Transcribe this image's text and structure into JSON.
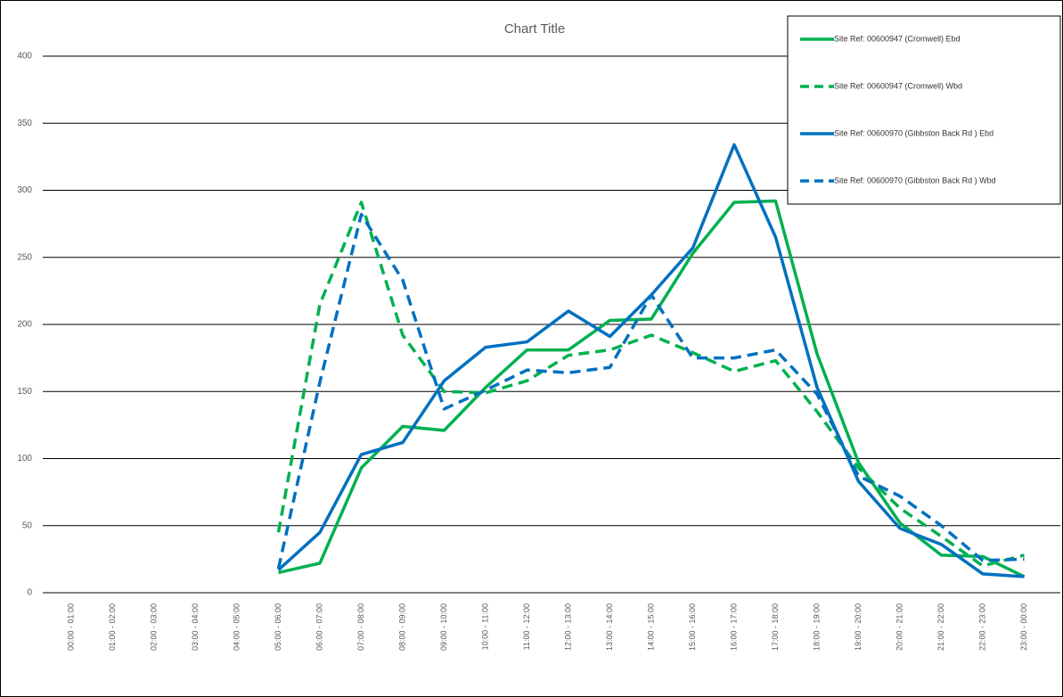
{
  "chart_data": {
    "type": "line",
    "title": "Chart Title",
    "categories": [
      "00:00 - 01:00",
      "01:00 - 02:00",
      "02:00 - 03:00",
      "03:00 - 04:00",
      "04:00 - 05:00",
      "05:00 - 06:00",
      "06:00 - 07:00",
      "07:00 - 08:00",
      "08:00 - 09:00",
      "09:00 - 10:00",
      "10:00 - 11:00",
      "11:00 - 12:00",
      "12:00 - 13:00",
      "13:00 - 14:00",
      "14:00 - 15:00",
      "15:00 - 16:00",
      "16:00 - 17:00",
      "17:00 - 18:00",
      "18:00 - 19:00",
      "19:00 - 20:00",
      "20:00 - 21:00",
      "21:00 - 22:00",
      "22:00 - 23:00",
      "23:00 - 00:00"
    ],
    "series": [
      {
        "name": "Site Ref: 00600947 (Cromwell) Ebd",
        "color": "#00b050",
        "line_style": "solid",
        "values": [
          null,
          null,
          null,
          null,
          null,
          15,
          22,
          93,
          124,
          121,
          153,
          181,
          181,
          203,
          204,
          253,
          291,
          292,
          178,
          97,
          52,
          28,
          27,
          12
        ]
      },
      {
        "name": "Site Ref: 00600947 (Cromwell) Wbd",
        "color": "#00b050",
        "line_style": "dashed",
        "values": [
          null,
          null,
          null,
          null,
          null,
          45,
          215,
          291,
          192,
          150,
          149,
          158,
          177,
          181,
          192,
          179,
          165,
          173,
          135,
          93,
          63,
          42,
          20,
          28
        ]
      },
      {
        "name": "Site Ref: 00600970 (Gibbston Back Rd ) Ebd",
        "color": "#0070c0",
        "line_style": "solid",
        "values": [
          null,
          null,
          null,
          null,
          null,
          17,
          45,
          103,
          112,
          158,
          183,
          187,
          210,
          191,
          222,
          257,
          334,
          265,
          153,
          83,
          48,
          36,
          14,
          12
        ]
      },
      {
        "name": "Site Ref: 00600970 (Gibbston Back Rd ) Wbd",
        "color": "#0070c0",
        "line_style": "dashed",
        "values": [
          null,
          null,
          null,
          null,
          null,
          18,
          157,
          282,
          233,
          137,
          151,
          166,
          164,
          168,
          222,
          175,
          175,
          181,
          148,
          87,
          72,
          50,
          24,
          25
        ]
      }
    ],
    "ylim": [
      0,
      400
    ],
    "yticks": [
      0,
      50,
      100,
      150,
      200,
      250,
      300,
      350,
      400
    ],
    "grid": true,
    "legend": "top-right"
  }
}
